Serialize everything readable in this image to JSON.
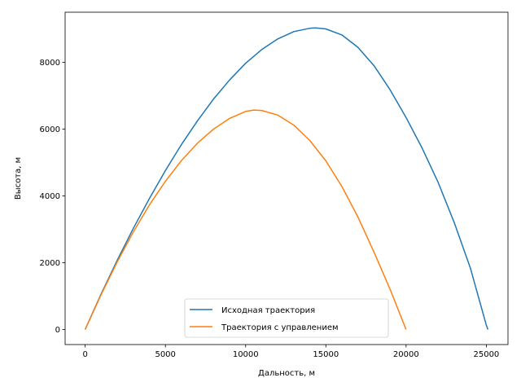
{
  "chart_data": {
    "type": "line",
    "title": "",
    "xlabel": "Дальность, м",
    "ylabel": "Высота, м",
    "xlim": [
      -1250,
      26350
    ],
    "ylim": [
      -450,
      9500
    ],
    "xticks": [
      0,
      5000,
      10000,
      15000,
      20000,
      25000
    ],
    "yticks": [
      0,
      2000,
      4000,
      6000,
      8000
    ],
    "grid": false,
    "legend_position": "lower center",
    "series": [
      {
        "name": "Исходная траектория",
        "color": "#1f77b4",
        "x": [
          0,
          1000,
          2000,
          3000,
          4000,
          5000,
          6000,
          7000,
          8000,
          9000,
          10000,
          11000,
          12000,
          13000,
          14000,
          14350,
          15000,
          16000,
          17000,
          18000,
          19000,
          20000,
          21000,
          22000,
          23000,
          24000,
          25000,
          25100
        ],
        "y": [
          0,
          1070,
          2080,
          3030,
          3920,
          4760,
          5540,
          6250,
          6900,
          7470,
          7970,
          8380,
          8700,
          8920,
          9020,
          9030,
          9000,
          8820,
          8450,
          7900,
          7180,
          6350,
          5430,
          4400,
          3200,
          1850,
          130,
          0
        ]
      },
      {
        "name": "Траектория с управлением",
        "color": "#ff7f0e",
        "x": [
          0,
          1000,
          2000,
          3000,
          4000,
          5000,
          6000,
          7000,
          8000,
          9000,
          10000,
          10500,
          11000,
          12000,
          13000,
          14000,
          15000,
          16000,
          17000,
          18000,
          19000,
          20000
        ],
        "y": [
          0,
          1050,
          2030,
          2920,
          3730,
          4440,
          5060,
          5580,
          6000,
          6320,
          6530,
          6570,
          6560,
          6420,
          6120,
          5660,
          5050,
          4280,
          3370,
          2320,
          1210,
          0
        ]
      }
    ]
  }
}
